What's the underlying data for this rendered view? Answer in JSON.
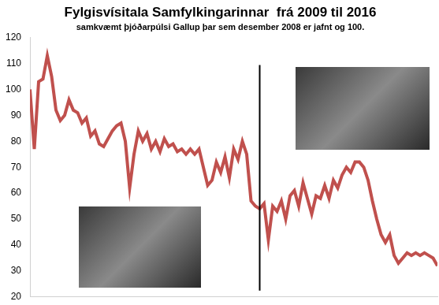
{
  "chart_data": {
    "type": "line",
    "title": "Fylgisvísitala Samfylkingarinnar  frá 2009 til 2016",
    "subtitle": "samkvæmt þjóðarpúlsi Gallup þar sem desember 2008 er jafnt og 100.",
    "categories": [
      null,
      null,
      null,
      null,
      null,
      null,
      null,
      null,
      null,
      null,
      null,
      null,
      null,
      null,
      null,
      null,
      null,
      null,
      null,
      null,
      null,
      null,
      null,
      null,
      null,
      null,
      null,
      null,
      null,
      null,
      null,
      null,
      null,
      null,
      null,
      null,
      null,
      null,
      null,
      null,
      null,
      null,
      null,
      null,
      null,
      null,
      null,
      null,
      null,
      null,
      null,
      null,
      null,
      null,
      null,
      null,
      null,
      null,
      null,
      null,
      null,
      null,
      null,
      null,
      null,
      null,
      null,
      null,
      null,
      null,
      null,
      null,
      null,
      null,
      null,
      null,
      null,
      null,
      null,
      null,
      null,
      null,
      null,
      null,
      null,
      null,
      null,
      null,
      null,
      null,
      null,
      null,
      null,
      null,
      null
    ],
    "values": [
      100,
      77,
      103,
      104,
      113,
      105,
      92,
      88,
      90,
      96,
      92,
      91,
      87,
      89,
      82,
      84,
      79,
      78,
      81,
      84,
      86,
      87,
      80,
      62,
      75,
      84,
      80,
      83,
      77,
      80,
      76,
      81,
      78,
      79,
      76,
      77,
      75,
      77,
      75,
      77,
      70,
      63,
      65,
      72,
      68,
      74,
      66,
      77,
      73,
      80,
      75,
      57,
      55,
      54,
      56,
      42,
      55,
      53,
      57,
      50,
      59,
      61,
      55,
      64,
      58,
      52,
      59,
      58,
      63,
      58,
      65,
      62,
      67,
      70,
      68,
      72,
      72,
      70,
      65,
      57,
      50,
      44,
      41,
      44,
      36,
      33,
      35,
      37,
      36,
      37,
      36,
      37,
      36,
      35,
      32
    ],
    "color": "#c0504d",
    "vertical_line_index": 53,
    "ylim": [
      20,
      120
    ],
    "yticks": [
      20,
      30,
      40,
      50,
      60,
      70,
      80,
      90,
      100,
      110,
      120
    ],
    "grid": false,
    "tick_labels": "y"
  }
}
